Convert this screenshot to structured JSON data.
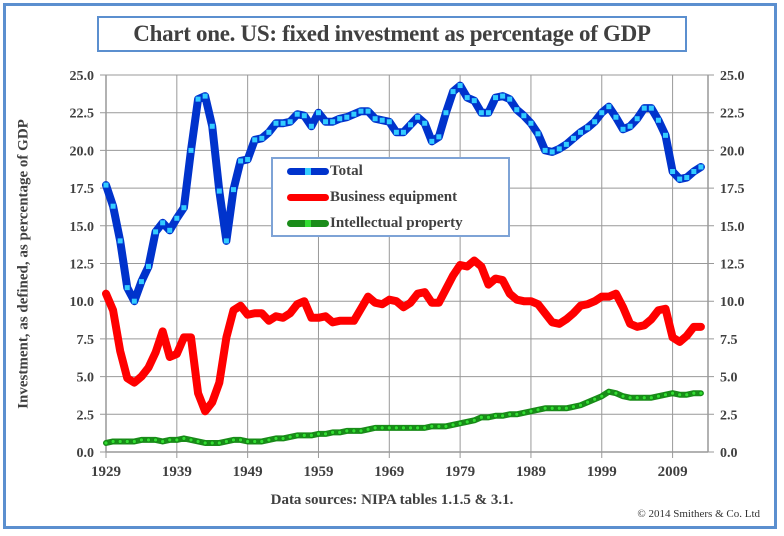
{
  "header": {
    "title": "Chart one. US: fixed investment as percentage of GDP"
  },
  "footer": {
    "source": "Data sources: NIPA tables 1.1.5 & 3.1.",
    "copyright": "© 2014 Smithers & Co. Ltd"
  },
  "legend": {
    "items": [
      {
        "label": "Total",
        "color": "#0033cc",
        "marker": "#33ccff"
      },
      {
        "label": "Business equipment",
        "color": "#ff0000"
      },
      {
        "label": "Intellectual property",
        "color": "#1a8c1a",
        "marker": "#33dd33"
      }
    ]
  },
  "chart_data": {
    "type": "line",
    "title": "Chart one. US: fixed investment as percentage of GDP",
    "xlabel": "",
    "ylabel": "Investment, as defined, as percentage of GDP",
    "ylabel_right": "",
    "ylim": [
      0,
      25
    ],
    "xlim": [
      1929,
      2013
    ],
    "grid": true,
    "legend_position": "upper-center",
    "x_ticks": [
      "1929",
      "1939",
      "1949",
      "1959",
      "1969",
      "1979",
      "1989",
      "1999",
      "2009"
    ],
    "y_ticks": [
      "0.0",
      "2.5",
      "5.0",
      "7.5",
      "10.0",
      "12.5",
      "15.0",
      "17.5",
      "20.0",
      "22.5",
      "25.0"
    ],
    "x": [
      1929,
      1930,
      1931,
      1932,
      1933,
      1934,
      1935,
      1936,
      1937,
      1938,
      1939,
      1940,
      1941,
      1942,
      1943,
      1944,
      1945,
      1946,
      1947,
      1948,
      1949,
      1950,
      1951,
      1952,
      1953,
      1954,
      1955,
      1956,
      1957,
      1958,
      1959,
      1960,
      1961,
      1962,
      1963,
      1964,
      1965,
      1966,
      1967,
      1968,
      1969,
      1970,
      1971,
      1972,
      1973,
      1974,
      1975,
      1976,
      1977,
      1978,
      1979,
      1980,
      1981,
      1982,
      1983,
      1984,
      1985,
      1986,
      1987,
      1988,
      1989,
      1990,
      1991,
      1992,
      1993,
      1994,
      1995,
      1996,
      1997,
      1998,
      1999,
      2000,
      2001,
      2002,
      2003,
      2004,
      2005,
      2006,
      2007,
      2008,
      2009,
      2010,
      2011,
      2012,
      2013
    ],
    "series": [
      {
        "name": "Total",
        "values": [
          17.7,
          16.3,
          14.0,
          10.9,
          10.0,
          11.3,
          12.3,
          14.6,
          15.2,
          14.7,
          15.5,
          16.2,
          20.0,
          23.4,
          23.6,
          21.6,
          17.3,
          14.0,
          17.4,
          19.3,
          19.4,
          20.7,
          20.8,
          21.2,
          21.8,
          21.8,
          21.9,
          22.4,
          22.3,
          21.6,
          22.5,
          21.9,
          21.9,
          22.1,
          22.2,
          22.4,
          22.6,
          22.6,
          22.1,
          22.0,
          21.9,
          21.2,
          21.2,
          21.7,
          22.2,
          21.8,
          20.6,
          20.9,
          22.5,
          23.9,
          24.3,
          23.5,
          23.3,
          22.5,
          22.5,
          23.5,
          23.6,
          23.4,
          22.7,
          22.3,
          21.8,
          21.1,
          20.0,
          19.9,
          20.1,
          20.4,
          20.8,
          21.2,
          21.5,
          21.9,
          22.5,
          22.9,
          22.2,
          21.4,
          21.6,
          22.1,
          22.8,
          22.8,
          22.0,
          21.0,
          18.6,
          18.1,
          18.2,
          18.6,
          18.9
        ]
      },
      {
        "name": "Business equipment",
        "values": [
          10.5,
          9.4,
          6.7,
          4.9,
          4.6,
          5.0,
          5.6,
          6.6,
          8.0,
          6.3,
          6.5,
          7.6,
          7.6,
          3.9,
          2.7,
          3.3,
          4.6,
          7.6,
          9.4,
          9.7,
          9.1,
          9.2,
          9.2,
          8.7,
          9.0,
          8.9,
          9.2,
          9.8,
          10.0,
          8.9,
          8.9,
          9.0,
          8.6,
          8.7,
          8.7,
          8.7,
          9.5,
          10.3,
          9.9,
          9.8,
          10.1,
          10.0,
          9.6,
          9.9,
          10.5,
          10.6,
          9.9,
          9.9,
          10.8,
          11.7,
          12.4,
          12.3,
          12.7,
          12.3,
          11.1,
          11.5,
          11.4,
          10.5,
          10.1,
          10.0,
          10.0,
          9.8,
          9.2,
          8.6,
          8.5,
          8.8,
          9.2,
          9.7,
          9.8,
          10.0,
          10.3,
          10.3,
          10.5,
          9.6,
          8.5,
          8.3,
          8.4,
          8.8,
          9.4,
          9.5,
          7.6,
          7.3,
          7.7,
          8.3,
          8.3
        ]
      },
      {
        "name": "Intellectual property",
        "values": [
          0.6,
          0.7,
          0.7,
          0.7,
          0.7,
          0.8,
          0.8,
          0.8,
          0.7,
          0.8,
          0.8,
          0.9,
          0.8,
          0.7,
          0.6,
          0.6,
          0.6,
          0.7,
          0.8,
          0.8,
          0.7,
          0.7,
          0.7,
          0.8,
          0.9,
          0.9,
          1.0,
          1.1,
          1.1,
          1.1,
          1.2,
          1.2,
          1.3,
          1.3,
          1.4,
          1.4,
          1.4,
          1.5,
          1.6,
          1.6,
          1.6,
          1.6,
          1.6,
          1.6,
          1.6,
          1.6,
          1.7,
          1.7,
          1.7,
          1.8,
          1.9,
          2.0,
          2.1,
          2.3,
          2.3,
          2.4,
          2.4,
          2.5,
          2.5,
          2.6,
          2.7,
          2.8,
          2.9,
          2.9,
          2.9,
          2.9,
          3.0,
          3.1,
          3.3,
          3.5,
          3.7,
          4.0,
          3.9,
          3.7,
          3.6,
          3.6,
          3.6,
          3.6,
          3.7,
          3.8,
          3.9,
          3.8,
          3.8,
          3.9,
          3.9
        ]
      }
    ]
  }
}
